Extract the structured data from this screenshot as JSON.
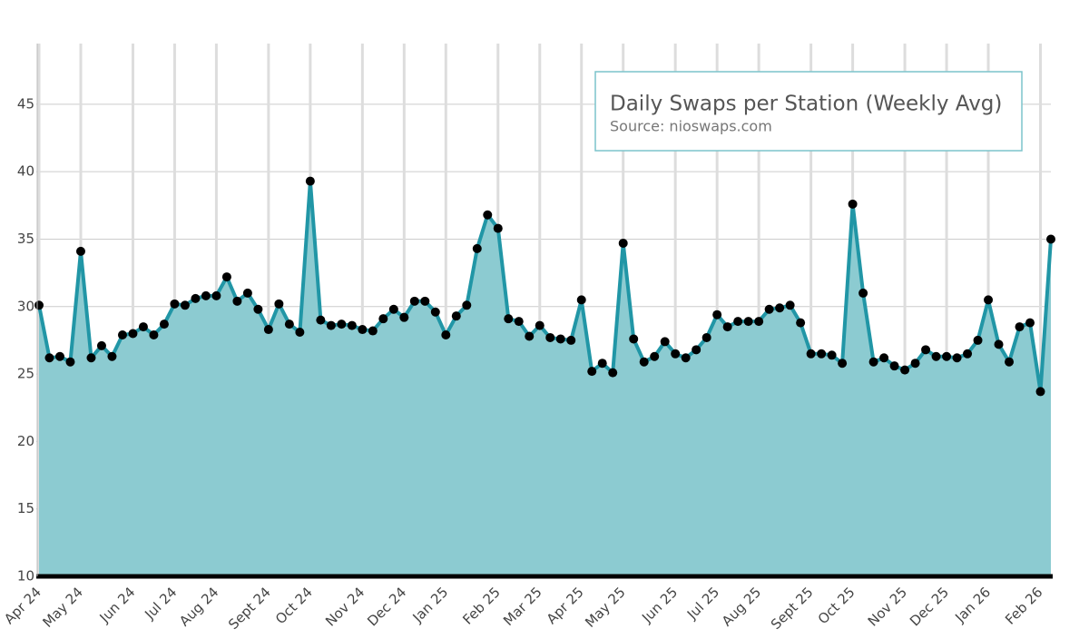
{
  "chart_data": {
    "type": "area",
    "title": "Daily Swaps per Station (Weekly Avg)",
    "subtitle": "Source: nioswaps.com",
    "categories": [
      "Apr 24",
      null,
      null,
      null,
      "May 24",
      null,
      null,
      null,
      null,
      "Jun 24",
      null,
      null,
      null,
      "Jul 24",
      null,
      null,
      null,
      "Aug 24",
      null,
      null,
      null,
      null,
      "Sept 24",
      null,
      null,
      null,
      "Oct 24",
      null,
      null,
      null,
      null,
      "Nov 24",
      null,
      null,
      null,
      "Dec 24",
      null,
      null,
      null,
      "Jan 25",
      null,
      null,
      null,
      null,
      "Feb 25",
      null,
      null,
      null,
      "Mar 25",
      null,
      null,
      null,
      "Apr 25",
      null,
      null,
      null,
      "May 25",
      null,
      null,
      null,
      null,
      "Jun 25",
      null,
      null,
      null,
      "Jul 25",
      null,
      null,
      null,
      "Aug 25",
      null,
      null,
      null,
      null,
      "Sept 25",
      null,
      null,
      null,
      "Oct 25",
      null,
      null,
      null,
      null,
      "Nov 25",
      null,
      null,
      null,
      "Dec 25",
      null,
      null,
      null,
      "Jan 26",
      null,
      null,
      null,
      null,
      "Feb 26",
      null
    ],
    "values": [
      30.1,
      26.2,
      26.3,
      25.9,
      34.1,
      26.2,
      27.1,
      26.3,
      27.9,
      28.0,
      28.5,
      27.9,
      28.7,
      30.2,
      30.1,
      30.6,
      30.8,
      30.8,
      32.2,
      30.4,
      31.0,
      29.8,
      28.3,
      30.2,
      28.7,
      28.1,
      39.3,
      29.0,
      28.6,
      28.7,
      28.6,
      28.3,
      28.2,
      29.1,
      29.8,
      29.2,
      30.4,
      30.4,
      29.6,
      27.9,
      29.3,
      30.1,
      34.3,
      36.8,
      35.8,
      29.1,
      28.9,
      27.8,
      28.6,
      27.7,
      27.6,
      27.5,
      30.5,
      25.2,
      25.8,
      25.1,
      34.7,
      27.6,
      25.9,
      26.3,
      27.4,
      26.5,
      26.2,
      26.8,
      27.7,
      29.4,
      28.5,
      28.9,
      28.9,
      28.9,
      29.8,
      29.9,
      30.1,
      28.8,
      26.5,
      26.5,
      26.4,
      25.8,
      37.6,
      31.0,
      25.9,
      26.2,
      25.6,
      25.3,
      25.8,
      26.8,
      26.3,
      26.3,
      26.2,
      26.5,
      27.5,
      30.5,
      27.2,
      25.9,
      28.5,
      28.8,
      23.7,
      35.0
    ],
    "color": "#2196a6",
    "fill_color": "#8ccbd1",
    "marker_color": "#000000",
    "ylim": [
      10,
      49.5
    ],
    "yticks": [
      10,
      15,
      20,
      25,
      30,
      35,
      40,
      45
    ],
    "grid": true
  }
}
